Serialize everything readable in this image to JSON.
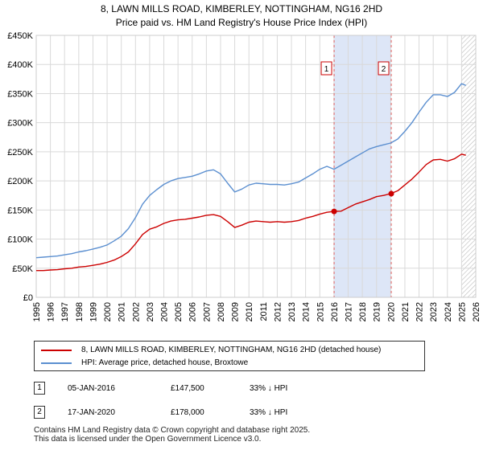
{
  "chart_data": {
    "type": "line",
    "title": "8, LAWN MILLS ROAD, KIMBERLEY, NOTTINGHAM, NG16 2HD",
    "subtitle": "Price paid vs. HM Land Registry's House Price Index (HPI)",
    "xlabel": "",
    "ylabel": "",
    "xlim": [
      1995,
      2026
    ],
    "ylim": [
      0,
      450000
    ],
    "x_ticks": [
      1995,
      1996,
      1997,
      1998,
      1999,
      2000,
      2001,
      2002,
      2003,
      2004,
      2005,
      2006,
      2007,
      2008,
      2009,
      2010,
      2011,
      2012,
      2013,
      2014,
      2015,
      2016,
      2017,
      2018,
      2019,
      2020,
      2021,
      2022,
      2023,
      2024,
      2025,
      2026
    ],
    "y_ticks": [
      {
        "value": 0,
        "label": "£0"
      },
      {
        "value": 50000,
        "label": "£50K"
      },
      {
        "value": 100000,
        "label": "£100K"
      },
      {
        "value": 150000,
        "label": "£150K"
      },
      {
        "value": 200000,
        "label": "£200K"
      },
      {
        "value": 250000,
        "label": "£250K"
      },
      {
        "value": 300000,
        "label": "£300K"
      },
      {
        "value": 350000,
        "label": "£350K"
      },
      {
        "value": 400000,
        "label": "£400K"
      },
      {
        "value": 450000,
        "label": "£450K"
      }
    ],
    "grid": true,
    "series": [
      {
        "name": "8, LAWN MILLS ROAD, KIMBERLEY, NOTTINGHAM, NG16 2HD (detached house)",
        "color": "#cc0000",
        "x": [
          1995.0,
          1995.5,
          1996.0,
          1996.5,
          1997.0,
          1997.5,
          1998.0,
          1998.5,
          1999.0,
          1999.5,
          2000.0,
          2000.5,
          2001.0,
          2001.5,
          2002.0,
          2002.5,
          2003.0,
          2003.5,
          2004.0,
          2004.5,
          2005.0,
          2005.5,
          2006.0,
          2006.5,
          2007.0,
          2007.5,
          2008.0,
          2008.5,
          2009.0,
          2009.5,
          2010.0,
          2010.5,
          2011.0,
          2011.5,
          2012.0,
          2012.5,
          2013.0,
          2013.5,
          2014.0,
          2014.5,
          2015.0,
          2015.5,
          2016.0,
          2016.5,
          2017.0,
          2017.5,
          2018.0,
          2018.5,
          2019.0,
          2019.5,
          2020.0,
          2020.5,
          2021.0,
          2021.5,
          2022.0,
          2022.5,
          2023.0,
          2023.5,
          2024.0,
          2024.5,
          2025.0,
          2025.3
        ],
        "values": [
          46000,
          46000,
          47000,
          47500,
          49000,
          50000,
          52000,
          53000,
          55000,
          57000,
          60000,
          64000,
          70000,
          78000,
          92000,
          108000,
          117000,
          121000,
          127000,
          131000,
          133000,
          134000,
          136000,
          138000,
          141000,
          142000,
          139000,
          130000,
          120000,
          124000,
          129000,
          131000,
          130000,
          129000,
          130000,
          129000,
          130000,
          132000,
          136000,
          139000,
          143000,
          146000,
          147500,
          148000,
          154000,
          160000,
          164000,
          168000,
          173000,
          175000,
          178000,
          183000,
          193000,
          203000,
          215000,
          228000,
          236000,
          237000,
          234000,
          238000,
          246000,
          244000
        ]
      },
      {
        "name": "HPI: Average price, detached house, Broxtowe",
        "color": "#5b8fd0",
        "x": [
          1995.0,
          1995.5,
          1996.0,
          1996.5,
          1997.0,
          1997.5,
          1998.0,
          1998.5,
          1999.0,
          1999.5,
          2000.0,
          2000.5,
          2001.0,
          2001.5,
          2002.0,
          2002.5,
          2003.0,
          2003.5,
          2004.0,
          2004.5,
          2005.0,
          2005.5,
          2006.0,
          2006.5,
          2007.0,
          2007.5,
          2008.0,
          2008.5,
          2009.0,
          2009.5,
          2010.0,
          2010.5,
          2011.0,
          2011.5,
          2012.0,
          2012.5,
          2013.0,
          2013.5,
          2014.0,
          2014.5,
          2015.0,
          2015.5,
          2016.0,
          2016.5,
          2017.0,
          2017.5,
          2018.0,
          2018.5,
          2019.0,
          2019.5,
          2020.0,
          2020.5,
          2021.0,
          2021.5,
          2022.0,
          2022.5,
          2023.0,
          2023.5,
          2024.0,
          2024.5,
          2025.0,
          2025.3
        ],
        "values": [
          68000,
          69000,
          70000,
          71000,
          73000,
          75000,
          78000,
          80000,
          83000,
          86000,
          90000,
          97000,
          105000,
          118000,
          137000,
          160000,
          175000,
          185000,
          194000,
          200000,
          204000,
          206000,
          208000,
          212000,
          217000,
          219000,
          212000,
          196000,
          181000,
          186000,
          193000,
          196000,
          195000,
          194000,
          194000,
          193000,
          195000,
          198000,
          205000,
          212000,
          220000,
          225000,
          220000,
          227000,
          234000,
          241000,
          248000,
          255000,
          259000,
          262000,
          265000,
          272000,
          285000,
          300000,
          318000,
          335000,
          348000,
          348000,
          345000,
          352000,
          367000,
          364000
        ]
      }
    ],
    "shaded_region": {
      "start": 2016.01,
      "end": 2020.04
    },
    "transactions": [
      {
        "id": "1",
        "date": "05-JAN-2016",
        "x": 2016.01,
        "price": 147500,
        "price_label": "£147,500",
        "hpi_note": "33% ↓ HPI"
      },
      {
        "id": "2",
        "date": "17-JAN-2020",
        "x": 2020.04,
        "price": 178000,
        "price_label": "£178,000",
        "hpi_note": "33% ↓ HPI"
      }
    ],
    "hatch_from": 2025.0,
    "legend_position": "below"
  },
  "footer": {
    "line1": "Contains HM Land Registry data © Crown copyright and database right 2025.",
    "line2": "This data is licensed under the Open Government Licence v3.0."
  }
}
